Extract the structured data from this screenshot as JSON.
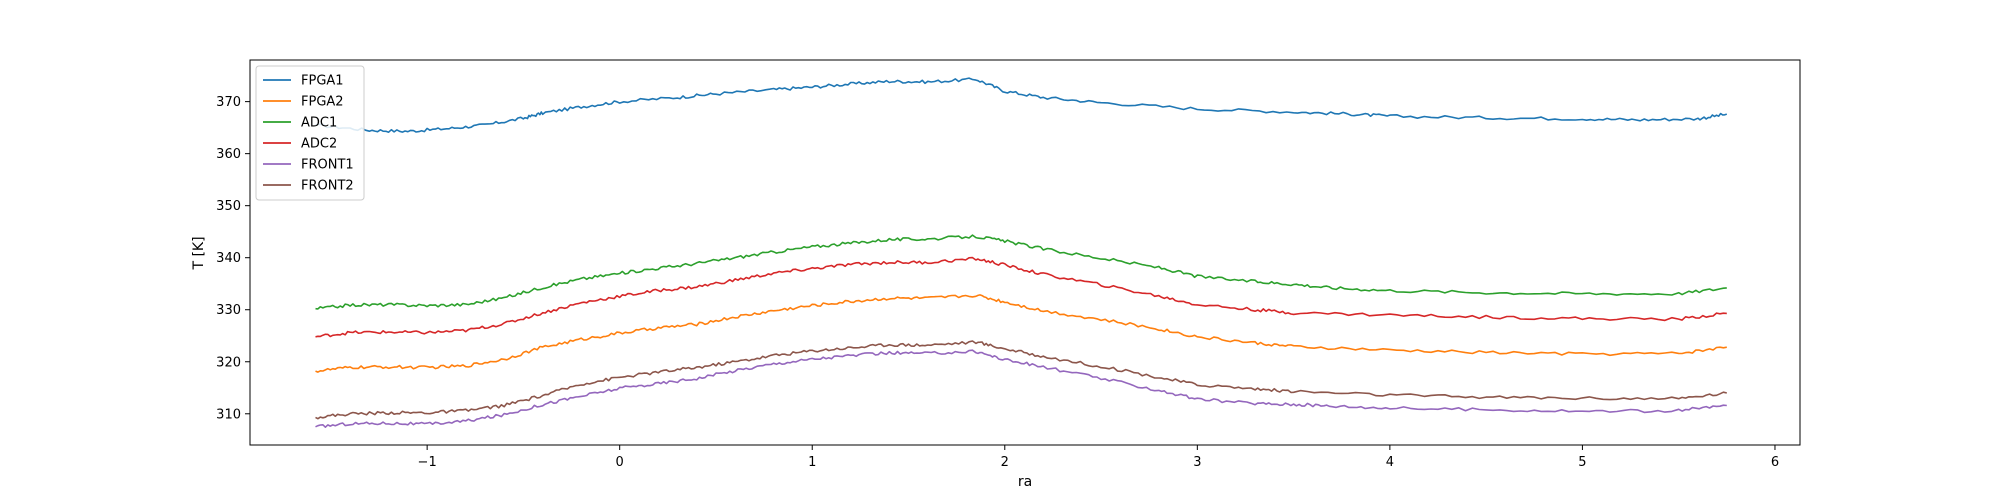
{
  "chart_data": {
    "type": "line",
    "xlabel": "ra",
    "ylabel": "T [K]",
    "xlim": [
      -1.92,
      6.13
    ],
    "ylim": [
      304,
      378
    ],
    "x_ticks": [
      -1,
      0,
      1,
      2,
      3,
      4,
      5,
      6
    ],
    "y_ticks": [
      310,
      320,
      330,
      340,
      350,
      360,
      370
    ],
    "grid": false,
    "legend_position": "top-left",
    "series": [
      {
        "name": "FPGA1",
        "color": "#1f77b4",
        "x": [
          -1.58,
          -1.3,
          -1.1,
          -0.9,
          -0.7,
          -0.5,
          -0.4,
          -0.2,
          0.0,
          0.3,
          0.5,
          0.8,
          1.0,
          1.2,
          1.4,
          1.6,
          1.85,
          2.0,
          2.2,
          2.5,
          3.0,
          3.5,
          3.8,
          4.0,
          4.5,
          5.0,
          5.3,
          5.6,
          5.75
        ],
        "y": [
          365.5,
          364.5,
          364.3,
          364.8,
          365.5,
          366.8,
          367.8,
          369.0,
          370.0,
          370.8,
          371.5,
          372.3,
          372.8,
          373.4,
          373.9,
          373.8,
          374.3,
          372.0,
          370.8,
          369.8,
          368.6,
          368.0,
          367.6,
          367.2,
          366.9,
          366.7,
          366.5,
          366.7,
          367.6
        ]
      },
      {
        "name": "FPGA2",
        "color": "#ff7f0e",
        "x": [
          -1.58,
          -1.4,
          -1.2,
          -1.0,
          -0.8,
          -0.6,
          -0.4,
          -0.2,
          0.0,
          0.2,
          0.4,
          0.6,
          0.8,
          1.0,
          1.2,
          1.4,
          1.6,
          1.85,
          2.0,
          2.2,
          2.5,
          2.8,
          3.0,
          3.3,
          3.5,
          4.0,
          4.5,
          5.0,
          5.5,
          5.75
        ],
        "y": [
          318.2,
          318.9,
          319.0,
          318.9,
          319.2,
          320.5,
          322.8,
          324.3,
          325.5,
          326.5,
          327.2,
          328.6,
          329.8,
          330.8,
          331.6,
          332.2,
          332.2,
          332.8,
          331.5,
          329.8,
          328.1,
          326.3,
          324.8,
          323.6,
          322.9,
          322.2,
          321.8,
          321.5,
          321.6,
          322.8
        ]
      },
      {
        "name": "ADC1",
        "color": "#2ca02c",
        "x": [
          -1.58,
          -1.4,
          -1.2,
          -1.0,
          -0.8,
          -0.6,
          -0.4,
          -0.2,
          0.0,
          0.2,
          0.4,
          0.6,
          0.8,
          1.0,
          1.2,
          1.4,
          1.6,
          1.85,
          2.0,
          2.2,
          2.5,
          2.8,
          3.0,
          3.3,
          3.5,
          3.7,
          4.0,
          4.5,
          5.0,
          5.5,
          5.75
        ],
        "y": [
          330.2,
          330.9,
          331.0,
          330.8,
          331.0,
          332.3,
          334.3,
          335.9,
          337.0,
          338.0,
          338.9,
          340.0,
          341.1,
          342.1,
          342.8,
          343.5,
          343.6,
          344.1,
          343.2,
          341.7,
          339.9,
          338.1,
          336.4,
          335.4,
          334.9,
          334.2,
          333.7,
          333.3,
          333.1,
          333.1,
          334.2
        ]
      },
      {
        "name": "ADC2",
        "color": "#d62728",
        "x": [
          -1.58,
          -1.4,
          -1.2,
          -1.0,
          -0.8,
          -0.6,
          -0.4,
          -0.2,
          0.0,
          0.2,
          0.4,
          0.6,
          0.8,
          1.0,
          1.2,
          1.4,
          1.6,
          1.85,
          2.0,
          2.2,
          2.5,
          2.8,
          3.0,
          3.3,
          3.5,
          4.0,
          4.5,
          5.0,
          5.5,
          5.75
        ],
        "y": [
          324.8,
          325.6,
          325.7,
          325.6,
          326.0,
          327.3,
          329.4,
          331.3,
          332.6,
          333.7,
          334.4,
          335.7,
          337.0,
          337.9,
          338.7,
          339.1,
          339.1,
          339.8,
          338.6,
          336.8,
          334.8,
          332.6,
          331.0,
          330.0,
          329.4,
          329.0,
          328.6,
          328.3,
          328.2,
          329.3
        ]
      },
      {
        "name": "FRONT1",
        "color": "#9467bd",
        "x": [
          -1.58,
          -1.4,
          -1.2,
          -1.0,
          -0.8,
          -0.6,
          -0.4,
          -0.2,
          0.0,
          0.2,
          0.4,
          0.6,
          0.8,
          1.0,
          1.2,
          1.4,
          1.6,
          1.85,
          2.0,
          2.2,
          2.5,
          2.8,
          3.0,
          3.3,
          3.5,
          3.7,
          4.0,
          4.5,
          5.0,
          5.5,
          5.75
        ],
        "y": [
          307.5,
          308.1,
          308.2,
          308.0,
          308.6,
          309.8,
          311.8,
          313.4,
          314.9,
          315.8,
          316.8,
          318.3,
          319.6,
          320.5,
          321.2,
          321.7,
          321.6,
          322.0,
          320.4,
          319.0,
          316.8,
          314.5,
          312.8,
          312.0,
          311.8,
          311.5,
          311.1,
          310.8,
          310.5,
          310.6,
          311.6
        ]
      },
      {
        "name": "FRONT2",
        "color": "#8c564b",
        "x": [
          -1.58,
          -1.4,
          -1.2,
          -1.0,
          -0.8,
          -0.6,
          -0.4,
          -0.2,
          0.0,
          0.2,
          0.4,
          0.6,
          0.8,
          1.0,
          1.2,
          1.4,
          1.6,
          1.85,
          2.0,
          2.2,
          2.5,
          2.8,
          3.0,
          3.3,
          3.5,
          4.0,
          4.5,
          5.0,
          5.5,
          5.75
        ],
        "y": [
          309.3,
          310.0,
          310.2,
          310.2,
          310.6,
          311.6,
          313.5,
          315.7,
          317.0,
          318.0,
          318.9,
          320.0,
          321.2,
          322.1,
          322.7,
          323.3,
          323.2,
          323.8,
          322.5,
          321.0,
          319.1,
          317.0,
          315.6,
          314.8,
          314.3,
          313.6,
          313.2,
          313.0,
          312.9,
          314.0
        ]
      }
    ]
  }
}
